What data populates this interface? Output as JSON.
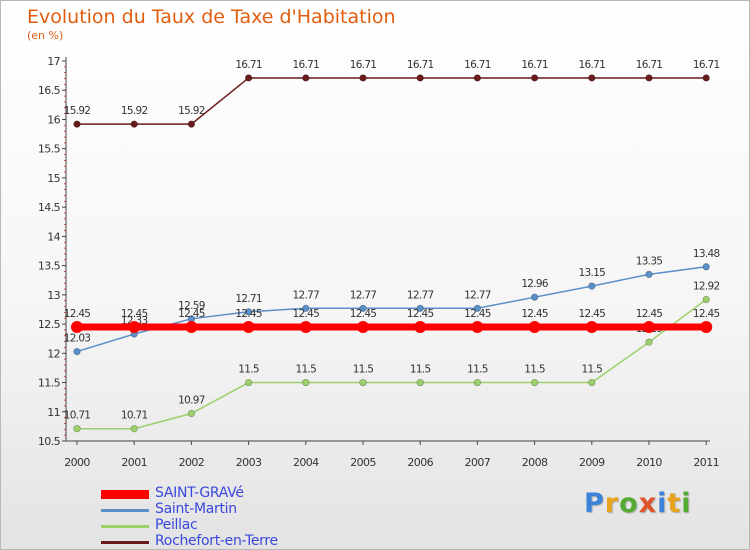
{
  "title": "Evolution du Taux de Taxe d'Habitation",
  "subtitle": "(en %)",
  "logo": {
    "text": "Proxiti",
    "colors": [
      "#3b82d9",
      "#e8a21c",
      "#55aa33",
      "#e0532b",
      "#3b82d9",
      "#e8a21c",
      "#55aa33"
    ]
  },
  "chart_data": {
    "type": "line",
    "title": "Evolution du Taux de Taxe d'Habitation",
    "ylabel": "(en %)",
    "ylim": [
      10.5,
      17
    ],
    "yticks": [
      "10.5",
      "11",
      "11.5",
      "12",
      "12.5",
      "13",
      "13.5",
      "14",
      "14.5",
      "15",
      "15.5",
      "16",
      "16.5",
      "17"
    ],
    "ytick_values": [
      10.5,
      11,
      11.5,
      12,
      12.5,
      13,
      13.5,
      14,
      14.5,
      15,
      15.5,
      16,
      16.5,
      17
    ],
    "x": [
      "2000",
      "2001",
      "2002",
      "2003",
      "2004",
      "2005",
      "2006",
      "2007",
      "2008",
      "2009",
      "2010",
      "2011"
    ],
    "legend_position": "bottom-left",
    "series": [
      {
        "name": "Rochefort-en-Terre",
        "color": "#6b1a1a",
        "values": [
          15.92,
          15.92,
          15.92,
          16.71,
          16.71,
          16.71,
          16.71,
          16.71,
          16.71,
          16.71,
          16.71,
          16.71
        ],
        "labels": [
          "15.92",
          "15.92",
          "15.92",
          "16.71",
          "16.71",
          "16.71",
          "16.71",
          "16.71",
          "16.71",
          "16.71",
          "16.71",
          "16.71"
        ]
      },
      {
        "name": "Saint-Martin",
        "color": "#5b8fc8",
        "values": [
          12.03,
          12.33,
          12.59,
          12.71,
          12.77,
          12.77,
          12.77,
          12.77,
          12.96,
          13.15,
          13.35,
          13.48
        ],
        "labels": [
          "12.03",
          "12.33",
          "12.59",
          "12.71",
          "12.77",
          "12.77",
          "12.77",
          "12.77",
          "12.96",
          "13.15",
          "13.35",
          "13.48"
        ]
      },
      {
        "name": "Peillac",
        "color": "#9bd06a",
        "values": [
          10.71,
          10.71,
          10.97,
          11.5,
          11.5,
          11.5,
          11.5,
          11.5,
          11.5,
          11.5,
          12.19,
          12.92
        ],
        "labels": [
          "10.71",
          "10.71",
          "10.97",
          "11.5",
          "11.5",
          "11.5",
          "11.5",
          "11.5",
          "11.5",
          "11.5",
          "12.19",
          "12.92"
        ]
      },
      {
        "name": "SAINT-GRAVé",
        "color": "#ff0000",
        "values": [
          12.45,
          12.45,
          12.45,
          12.45,
          12.45,
          12.45,
          12.45,
          12.45,
          12.45,
          12.45,
          12.45,
          12.45
        ],
        "labels": [
          "12.45",
          "12.45",
          "12.45",
          "12.45",
          "12.45",
          "12.45",
          "12.45",
          "12.45",
          "12.45",
          "12.45",
          "12.45",
          "12.45"
        ]
      }
    ],
    "legend": [
      "SAINT-GRAVé",
      "Saint-Martin",
      "Peillac",
      "Rochefort-en-Terre"
    ]
  }
}
